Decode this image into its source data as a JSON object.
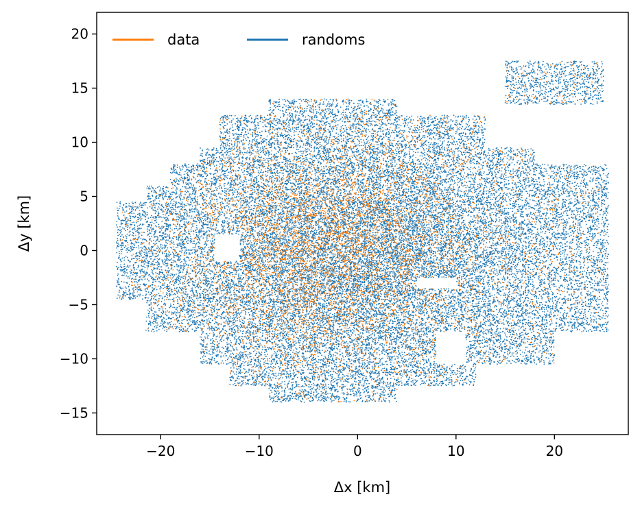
{
  "chart_data": {
    "type": "scatter",
    "title": "",
    "xlabel": "Δx [km]",
    "ylabel": "Δy [km]",
    "xlim": [
      -26.5,
      27.5
    ],
    "ylim": [
      -17,
      22
    ],
    "xticks": [
      -20,
      -10,
      0,
      10,
      20
    ],
    "xtick_labels": [
      "−20",
      "−10",
      "0",
      "10",
      "20"
    ],
    "yticks": [
      -15,
      -10,
      -5,
      0,
      5,
      10,
      15,
      20
    ],
    "ytick_labels": [
      "−15",
      "−10",
      "−5",
      "0",
      "5",
      "10",
      "15",
      "20"
    ],
    "grid": false,
    "legend": {
      "placement": "top-left",
      "columns": 2
    },
    "series": [
      {
        "name": "data",
        "color": "#ff7f0e",
        "approx_point_count": 6000,
        "center": [
          -2.5,
          0.0
        ],
        "extent_x": [
          -24,
          25
        ],
        "extent_y": [
          -14,
          17.5
        ]
      },
      {
        "name": "randoms",
        "color": "#1f77b4",
        "approx_point_count": 30000,
        "center": [
          0.0,
          0.0
        ],
        "extent_x": [
          -24.5,
          25.5
        ],
        "extent_y": [
          -14,
          17.5
        ]
      }
    ]
  }
}
